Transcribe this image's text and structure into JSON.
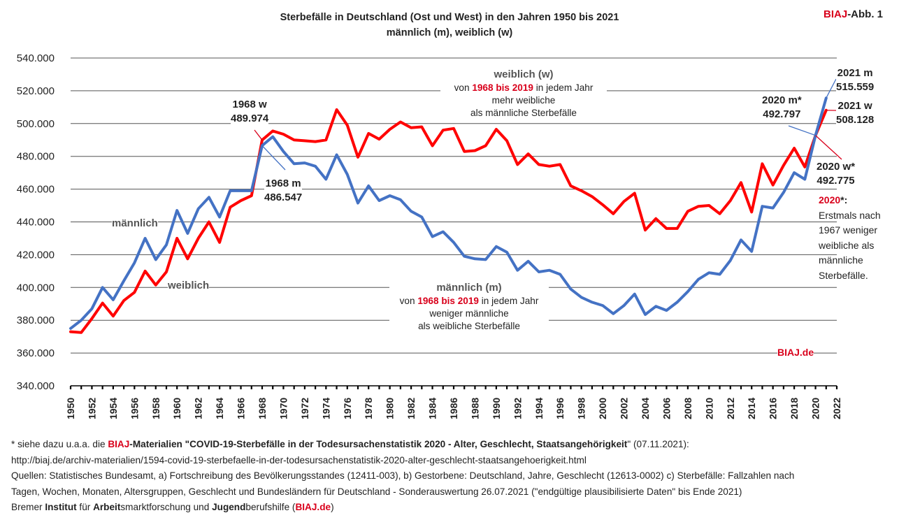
{
  "chart_data": {
    "type": "line",
    "title": "Sterbefälle in Deutschland (Ost und West) in den Jahren 1950 bis 2021",
    "subtitle": "männlich (m), weiblich (w)",
    "source_tag": {
      "brand": "BIAJ",
      "suffix": "-Abb. 1"
    },
    "x": [
      1950,
      1951,
      1952,
      1953,
      1954,
      1955,
      1956,
      1957,
      1958,
      1959,
      1960,
      1961,
      1962,
      1963,
      1964,
      1965,
      1966,
      1967,
      1968,
      1969,
      1970,
      1971,
      1972,
      1973,
      1974,
      1975,
      1976,
      1977,
      1978,
      1979,
      1980,
      1981,
      1982,
      1983,
      1984,
      1985,
      1986,
      1987,
      1988,
      1989,
      1990,
      1991,
      1992,
      1993,
      1994,
      1995,
      1996,
      1997,
      1998,
      1999,
      2000,
      2001,
      2002,
      2003,
      2004,
      2005,
      2006,
      2007,
      2008,
      2009,
      2010,
      2011,
      2012,
      2013,
      2014,
      2015,
      2016,
      2017,
      2018,
      2019,
      2020,
      2021
    ],
    "series": [
      {
        "name": "männlich",
        "color": "#4472c4",
        "values": [
          375000,
          380000,
          387000,
          400000,
          392500,
          404000,
          415000,
          430000,
          417000,
          426000,
          447000,
          433000,
          448000,
          455000,
          443000,
          459000,
          459000,
          459000,
          486547,
          492000,
          483000,
          475500,
          476000,
          474000,
          466000,
          481000,
          469000,
          451500,
          462000,
          453000,
          456000,
          453500,
          446500,
          443000,
          431000,
          434000,
          427500,
          419000,
          417500,
          417000,
          425000,
          421500,
          410500,
          416000,
          409500,
          410500,
          408000,
          399000,
          394000,
          391000,
          389000,
          384000,
          389000,
          396000,
          383500,
          388500,
          386000,
          391000,
          397500,
          405000,
          409000,
          408000,
          416500,
          429000,
          422000,
          449500,
          448500,
          458000,
          470000,
          466000,
          492797,
          515559
        ]
      },
      {
        "name": "weiblich",
        "color": "#ff0000",
        "values": [
          373000,
          372500,
          381000,
          390500,
          382500,
          392000,
          397000,
          410000,
          401500,
          409500,
          430000,
          417500,
          430000,
          440000,
          427500,
          449000,
          453000,
          456000,
          489974,
          495500,
          493500,
          490000,
          489500,
          489000,
          490000,
          508500,
          499000,
          479500,
          494000,
          490500,
          496500,
          501000,
          497500,
          498000,
          486500,
          496000,
          497000,
          483000,
          483500,
          486500,
          496500,
          489500,
          475000,
          481500,
          475000,
          474000,
          475000,
          462000,
          459000,
          455500,
          450500,
          445000,
          452500,
          457500,
          435000,
          442000,
          436000,
          436000,
          446500,
          449500,
          450000,
          445000,
          453000,
          464000,
          446000,
          475500,
          462500,
          474500,
          485000,
          473500,
          492775,
          508128
        ]
      }
    ],
    "ylim": [
      340000,
      540000
    ],
    "yticks": [
      "340.000",
      "360.000",
      "380.000",
      "400.000",
      "420.000",
      "440.000",
      "460.000",
      "480.000",
      "500.000",
      "520.000",
      "540.000"
    ],
    "xticks": [
      "1950",
      "1952",
      "1954",
      "1956",
      "1958",
      "1960",
      "1962",
      "1964",
      "1966",
      "1968",
      "1970",
      "1972",
      "1974",
      "1976",
      "1978",
      "1980",
      "1982",
      "1984",
      "1986",
      "1988",
      "1990",
      "1992",
      "1994",
      "1996",
      "1998",
      "2000",
      "2002",
      "2004",
      "2006",
      "2008",
      "2010",
      "2012",
      "2014",
      "2016",
      "2018",
      "2020",
      "2022"
    ],
    "grid": true,
    "series_labels": {
      "male": "männlich",
      "female": "weiblich"
    },
    "annotations": {
      "w1968": {
        "label": "1968 w",
        "value": "489.974"
      },
      "m1968": {
        "label": "1968 m",
        "value": "486.547"
      },
      "m2021": {
        "label": "2021 m",
        "value": "515.559"
      },
      "w2021": {
        "label": "2021 w",
        "value": "508.128"
      },
      "m2020": {
        "label": "2020 m*",
        "value": "492.797"
      },
      "w2020": {
        "label": "2020 w*",
        "value": "492.775"
      },
      "weiblich_box": {
        "title": "weiblich (w)",
        "pre": "von ",
        "range": "1968 bis 2019",
        "post": " in jedem Jahr",
        "line2": "mehr weibliche",
        "line3": "als männliche Sterbefälle"
      },
      "maennlich_box": {
        "title": "männlich (m)",
        "pre": "von ",
        "range": "1968 bis 2019",
        "post": " in jedem Jahr",
        "line2": "weniger männliche",
        "line3": "als weibliche Sterbefälle"
      },
      "note2020": {
        "year": "2020",
        "star": "*:",
        "lines": [
          "Erstmals nach",
          "1967 weniger",
          "weibliche als",
          "männliche",
          "Sterbefälle."
        ]
      },
      "watermark": "BIAJ.de"
    }
  },
  "footnotes": {
    "line1": {
      "prefix": "* siehe dazu u.a.a. die ",
      "brand": "BIAJ",
      "mid": "-Materialien \"",
      "title": "COVID-19-Sterbefälle in der Todesursachenstatistik 2020 - Alter, Geschlecht, Staatsangehörigkeit",
      "suffix": "\" (07.11.2021):"
    },
    "line2": "http://biaj.de/archiv-materialien/1594-covid-19-sterbefaelle-in-der-todesursachenstatistik-2020-alter-geschlecht-staatsangehoerigkeit.html",
    "line3": "Quellen: Statistisches Bundesamt, a) Fortschreibung des Bevölkerungsstandes (12411-003), b) Gestorbene: Deutschland, Jahre, Geschlecht (12613-0002) c) Sterbefälle: Fallzahlen nach",
    "line4": "Tagen, Wochen, Monaten, Altersgruppen, Geschlecht und Bundesländern für Deutschland - Sonderauswertung 26.07.2021 (\"endgültige plausibilisierte Daten\" bis Ende 2021)",
    "line5": {
      "p1": "Bremer ",
      "b1": "Institut",
      "p2": " für ",
      "b2": "Arbeit",
      "p3": "smarktforschung und ",
      "b3": "Jugend",
      "p4": "berufshilfe (",
      "brand": "BIAJ.de",
      "p5": ")"
    }
  }
}
